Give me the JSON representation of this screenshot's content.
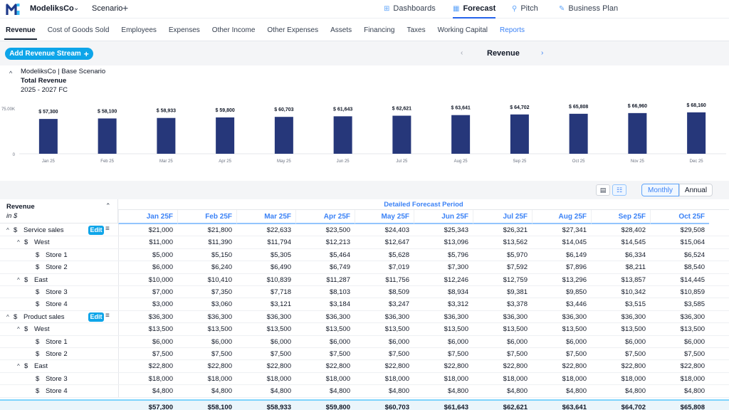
{
  "app": {
    "brand": "ModeliksCo",
    "scenario": "Scenario",
    "nav": [
      {
        "label": "Dashboards",
        "icon": "dashboard-icon",
        "glyph": "⊞"
      },
      {
        "label": "Forecast",
        "icon": "forecast-icon",
        "glyph": "▦"
      },
      {
        "label": "Pitch",
        "icon": "pitch-icon",
        "glyph": "⚲"
      },
      {
        "label": "Business Plan",
        "icon": "business-plan-icon",
        "glyph": "✎"
      }
    ],
    "active_nav": "Forecast"
  },
  "tabs": [
    "Revenue",
    "Cost of Goods Sold",
    "Employees",
    "Expenses",
    "Other Income",
    "Other Expenses",
    "Assets",
    "Financing",
    "Taxes",
    "Working Capital",
    "Reports"
  ],
  "active_tab": "Revenue",
  "toolbar": {
    "add_label": "Add Revenue Stream",
    "center_title": "Revenue",
    "prev_glyph": "‹",
    "next_glyph": "›"
  },
  "chart_header": {
    "company": "ModeliksCo | Base Scenario",
    "title": "Total Revenue",
    "range": "2025 - 2027 FC"
  },
  "chart_data": {
    "type": "bar",
    "title": "Total Revenue",
    "categories": [
      "Jan 25",
      "Feb 25",
      "Mar 25",
      "Apr 25",
      "May 25",
      "Jun 25",
      "Jul 25",
      "Aug 25",
      "Sep 25",
      "Oct 25",
      "Nov 25",
      "Dec 25"
    ],
    "values": [
      57300,
      58100,
      58933,
      59800,
      60703,
      61643,
      62621,
      63641,
      64702,
      65808,
      66960,
      68160
    ],
    "data_labels": [
      "$ 57,300",
      "$ 58,100",
      "$ 58,933",
      "$ 59,800",
      "$ 60,703",
      "$ 61,643",
      "$ 62,621",
      "$ 63,641",
      "$ 64,702",
      "$ 65,808",
      "$ 66,960",
      "$ 68,160"
    ],
    "y_ticks": [
      {
        "value": 75000,
        "label": "75.00K"
      },
      {
        "value": 0,
        "label": "0"
      }
    ],
    "ylim": [
      0,
      75000
    ],
    "bar_color": "#26377a"
  },
  "view": {
    "monthly": "Monthly",
    "annual": "Annual",
    "selected": "Monthly"
  },
  "table": {
    "head_title": "Revenue",
    "head_unit": "in $",
    "period_label": "Detailed Forecast Period",
    "edit_label": "Edit",
    "columns": [
      "Jan 25F",
      "Feb 25F",
      "Mar 25F",
      "Apr 25F",
      "May 25F",
      "Jun 25F",
      "Jul 25F",
      "Aug 25F",
      "Sep 25F",
      "Oct 25F"
    ],
    "rows": [
      {
        "label": "Service sales",
        "level": 0,
        "caret": "^",
        "edit": true,
        "values": [
          "$21,000",
          "$21,800",
          "$22,633",
          "$23,500",
          "$24,403",
          "$25,343",
          "$26,321",
          "$27,341",
          "$28,402",
          "$29,508"
        ]
      },
      {
        "label": "West",
        "level": 1,
        "caret": "^",
        "values": [
          "$11,000",
          "$11,390",
          "$11,794",
          "$12,213",
          "$12,647",
          "$13,096",
          "$13,562",
          "$14,045",
          "$14,545",
          "$15,064"
        ]
      },
      {
        "label": "Store 1",
        "level": 2,
        "values": [
          "$5,000",
          "$5,150",
          "$5,305",
          "$5,464",
          "$5,628",
          "$5,796",
          "$5,970",
          "$6,149",
          "$6,334",
          "$6,524"
        ]
      },
      {
        "label": "Store 2",
        "level": 2,
        "values": [
          "$6,000",
          "$6,240",
          "$6,490",
          "$6,749",
          "$7,019",
          "$7,300",
          "$7,592",
          "$7,896",
          "$8,211",
          "$8,540"
        ]
      },
      {
        "label": "East",
        "level": 1,
        "caret": "^",
        "values": [
          "$10,000",
          "$10,410",
          "$10,839",
          "$11,287",
          "$11,756",
          "$12,246",
          "$12,759",
          "$13,296",
          "$13,857",
          "$14,445"
        ]
      },
      {
        "label": "Store 3",
        "level": 2,
        "values": [
          "$7,000",
          "$7,350",
          "$7,718",
          "$8,103",
          "$8,509",
          "$8,934",
          "$9,381",
          "$9,850",
          "$10,342",
          "$10,859"
        ]
      },
      {
        "label": "Store 4",
        "level": 2,
        "values": [
          "$3,000",
          "$3,060",
          "$3,121",
          "$3,184",
          "$3,247",
          "$3,312",
          "$3,378",
          "$3,446",
          "$3,515",
          "$3,585"
        ]
      },
      {
        "label": "Product sales",
        "level": 0,
        "caret": "^",
        "edit": true,
        "values": [
          "$36,300",
          "$36,300",
          "$36,300",
          "$36,300",
          "$36,300",
          "$36,300",
          "$36,300",
          "$36,300",
          "$36,300",
          "$36,300"
        ]
      },
      {
        "label": "West",
        "level": 1,
        "caret": "^",
        "values": [
          "$13,500",
          "$13,500",
          "$13,500",
          "$13,500",
          "$13,500",
          "$13,500",
          "$13,500",
          "$13,500",
          "$13,500",
          "$13,500"
        ]
      },
      {
        "label": "Store 1",
        "level": 2,
        "values": [
          "$6,000",
          "$6,000",
          "$6,000",
          "$6,000",
          "$6,000",
          "$6,000",
          "$6,000",
          "$6,000",
          "$6,000",
          "$6,000"
        ]
      },
      {
        "label": "Store 2",
        "level": 2,
        "values": [
          "$7,500",
          "$7,500",
          "$7,500",
          "$7,500",
          "$7,500",
          "$7,500",
          "$7,500",
          "$7,500",
          "$7,500",
          "$7,500"
        ]
      },
      {
        "label": "East",
        "level": 1,
        "caret": "^",
        "values": [
          "$22,800",
          "$22,800",
          "$22,800",
          "$22,800",
          "$22,800",
          "$22,800",
          "$22,800",
          "$22,800",
          "$22,800",
          "$22,800"
        ]
      },
      {
        "label": "Store 3",
        "level": 2,
        "values": [
          "$18,000",
          "$18,000",
          "$18,000",
          "$18,000",
          "$18,000",
          "$18,000",
          "$18,000",
          "$18,000",
          "$18,000",
          "$18,000"
        ]
      },
      {
        "label": "Store 4",
        "level": 2,
        "values": [
          "$4,800",
          "$4,800",
          "$4,800",
          "$4,800",
          "$4,800",
          "$4,800",
          "$4,800",
          "$4,800",
          "$4,800",
          "$4,800"
        ]
      }
    ],
    "total": [
      "$57,300",
      "$58,100",
      "$58,933",
      "$59,800",
      "$60,703",
      "$61,643",
      "$62,621",
      "$63,641",
      "$64,702",
      "$65,808"
    ]
  }
}
